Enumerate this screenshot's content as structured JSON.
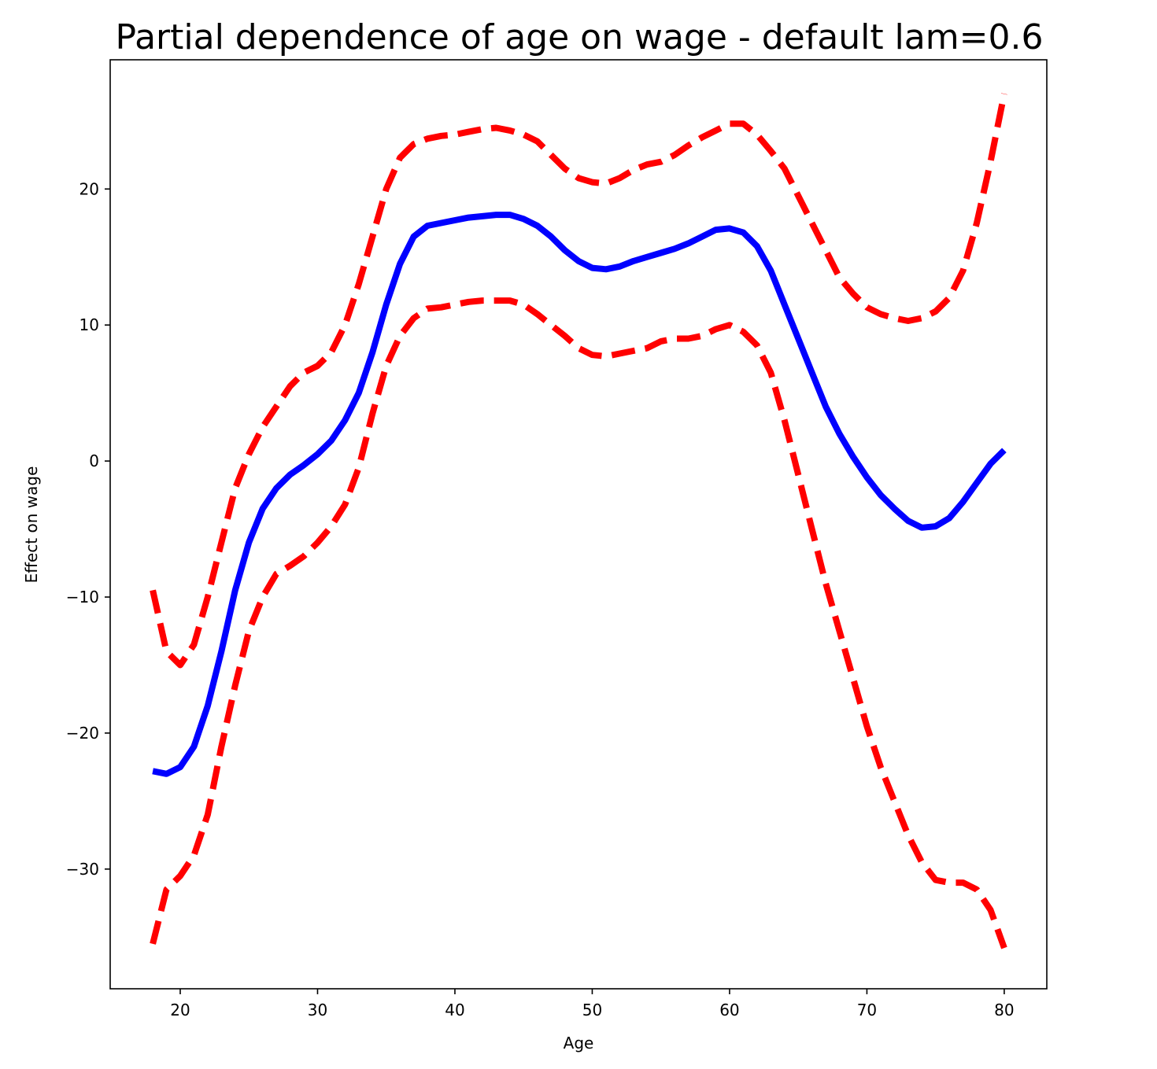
{
  "chart_data": {
    "type": "line",
    "title": "Partial dependence of age on wage - default lam=0.6",
    "xlabel": "Age",
    "ylabel": "Effect on wage",
    "xlim": [
      14.9,
      83.1
    ],
    "ylim": [
      -38.8,
      29.5
    ],
    "grid": false,
    "x_ticks": [
      20,
      30,
      40,
      50,
      60,
      70,
      80
    ],
    "y_ticks": [
      -30,
      -20,
      -10,
      0,
      10,
      20
    ],
    "x_tick_labels": [
      "20",
      "30",
      "40",
      "50",
      "60",
      "70",
      "80"
    ],
    "y_tick_labels": [
      "−30",
      "−20",
      "−10",
      "0",
      "10",
      "20"
    ],
    "x": [
      18,
      19,
      20,
      21,
      22,
      23,
      24,
      25,
      26,
      27,
      28,
      29,
      30,
      31,
      32,
      33,
      34,
      35,
      36,
      37,
      38,
      39,
      40,
      41,
      42,
      43,
      44,
      45,
      46,
      47,
      48,
      49,
      50,
      51,
      52,
      53,
      54,
      55,
      56,
      57,
      58,
      59,
      60,
      61,
      62,
      63,
      64,
      65,
      66,
      67,
      68,
      69,
      70,
      71,
      72,
      73,
      74,
      75,
      76,
      77,
      78,
      79,
      80
    ],
    "series": [
      {
        "color": "#0000ff",
        "style": "solid",
        "values": [
          -22.8,
          -23.0,
          -22.5,
          -21.0,
          -18.0,
          -14.0,
          -9.5,
          -6.0,
          -3.5,
          -2.0,
          -1.0,
          -0.3,
          0.5,
          1.5,
          3.0,
          5.0,
          8.0,
          11.5,
          14.5,
          16.5,
          17.3,
          17.5,
          17.7,
          17.9,
          18.0,
          18.1,
          18.1,
          17.8,
          17.3,
          16.5,
          15.5,
          14.7,
          14.2,
          14.1,
          14.3,
          14.7,
          15.0,
          15.3,
          15.6,
          16.0,
          16.5,
          17.0,
          17.1,
          16.8,
          15.8,
          14.0,
          11.5,
          9.0,
          6.5,
          4.0,
          2.0,
          0.3,
          -1.2,
          -2.5,
          -3.5,
          -4.4,
          -4.9,
          -4.8,
          -4.2,
          -3.0,
          -1.6,
          -0.2,
          0.8
        ]
      },
      {
        "color": "#ff0000",
        "style": "dashed",
        "values": [
          -9.5,
          -14.0,
          -15.0,
          -13.5,
          -10.0,
          -6.0,
          -2.0,
          0.5,
          2.5,
          4.0,
          5.5,
          6.5,
          7.0,
          8.0,
          10.0,
          13.0,
          16.5,
          20.0,
          22.3,
          23.3,
          23.7,
          23.9,
          24.0,
          24.2,
          24.4,
          24.5,
          24.3,
          24.0,
          23.5,
          22.5,
          21.5,
          20.8,
          20.5,
          20.4,
          20.8,
          21.4,
          21.8,
          22.0,
          22.5,
          23.2,
          23.8,
          24.3,
          24.8,
          24.8,
          24.0,
          22.8,
          21.5,
          19.5,
          17.5,
          15.5,
          13.5,
          12.3,
          11.3,
          10.8,
          10.5,
          10.3,
          10.5,
          11.0,
          12.0,
          14.0,
          17.5,
          22.0,
          27.0
        ]
      },
      {
        "color": "#ff0000",
        "style": "dashed",
        "values": [
          -35.5,
          -31.5,
          -30.5,
          -29.0,
          -26.0,
          -21.0,
          -16.5,
          -12.5,
          -10.0,
          -8.3,
          -7.7,
          -7.0,
          -6.0,
          -4.8,
          -3.2,
          -0.5,
          3.5,
          7.0,
          9.2,
          10.5,
          11.2,
          11.3,
          11.5,
          11.7,
          11.8,
          11.8,
          11.8,
          11.5,
          10.8,
          10.0,
          9.2,
          8.3,
          7.8,
          7.7,
          7.9,
          8.1,
          8.3,
          8.8,
          9.0,
          9.0,
          9.2,
          9.7,
          10.0,
          9.5,
          8.5,
          6.5,
          3.0,
          -1.0,
          -5.0,
          -9.0,
          -12.5,
          -16.0,
          -19.5,
          -22.5,
          -25.0,
          -27.5,
          -29.5,
          -30.8,
          -31.0,
          -31.0,
          -31.5,
          -33.0,
          -35.8
        ]
      }
    ]
  }
}
